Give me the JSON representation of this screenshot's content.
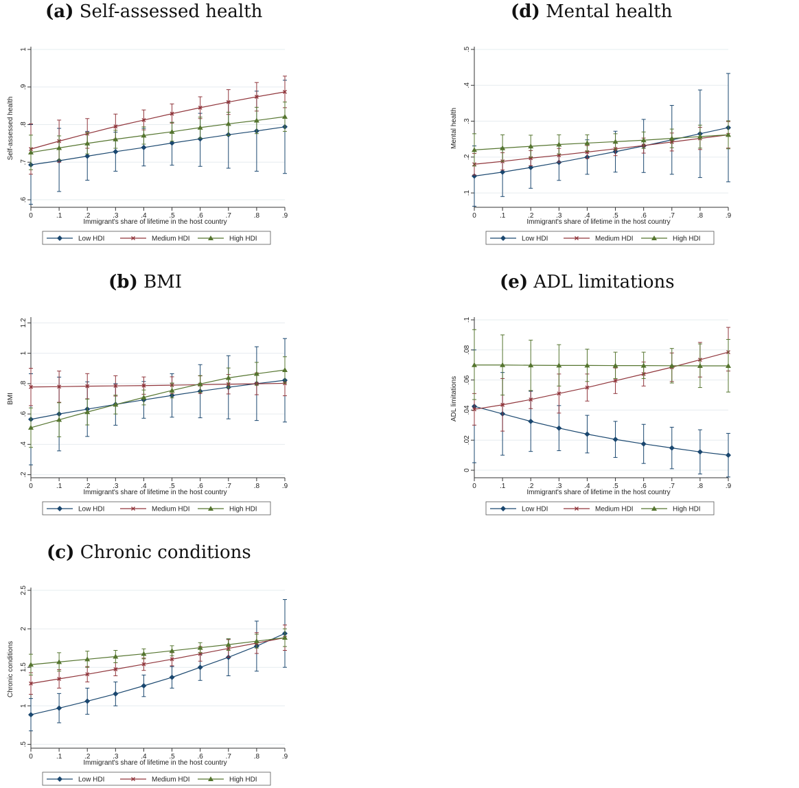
{
  "legend_labels": [
    "Low HDI",
    "Medium HDI",
    "High HDI"
  ],
  "colors": {
    "low": "#1a476f",
    "medium": "#90353b",
    "high": "#55752f",
    "grid": "#e6ecef"
  },
  "chart_data": [
    {
      "id": "a",
      "letter": "(a)",
      "title": "Self-assessed health",
      "type": "line",
      "xlabel": "Immigrant's share of lifetime in the host country",
      "ylabel": "Self-assessed health",
      "x": [
        0,
        0.1,
        0.2,
        0.3,
        0.4,
        0.5,
        0.6,
        0.7,
        0.8,
        0.9
      ],
      "xtick_labels": [
        "0",
        ".1",
        ".2",
        ".3",
        ".4",
        ".5",
        ".6",
        ".7",
        ".8",
        ".9"
      ],
      "ylim": [
        0.58,
        1.0
      ],
      "yticks": [
        0.6,
        0.7,
        0.8,
        0.9,
        1.0
      ],
      "ytick_labels": [
        ".6",
        ".7",
        ".8",
        ".9",
        "1"
      ],
      "series": [
        {
          "name": "Low HDI",
          "values": [
            0.693,
            0.704,
            0.716,
            0.728,
            0.739,
            0.751,
            0.762,
            0.773,
            0.783,
            0.794
          ],
          "lower": [
            0.588,
            0.622,
            0.652,
            0.676,
            0.69,
            0.692,
            0.689,
            0.684,
            0.676,
            0.67
          ],
          "upper": [
            0.8,
            0.79,
            0.782,
            0.78,
            0.79,
            0.806,
            0.83,
            0.86,
            0.889,
            0.918
          ]
        },
        {
          "name": "Medium HDI",
          "values": [
            0.735,
            0.756,
            0.776,
            0.795,
            0.812,
            0.829,
            0.845,
            0.86,
            0.874,
            0.887
          ],
          "lower": [
            0.668,
            0.7,
            0.737,
            0.762,
            0.786,
            0.804,
            0.816,
            0.827,
            0.836,
            0.845
          ],
          "upper": [
            0.802,
            0.812,
            0.816,
            0.828,
            0.839,
            0.855,
            0.874,
            0.893,
            0.912,
            0.929
          ]
        },
        {
          "name": "High HDI",
          "values": [
            0.726,
            0.738,
            0.75,
            0.761,
            0.771,
            0.781,
            0.792,
            0.802,
            0.811,
            0.821
          ],
          "lower": [
            0.68,
            0.706,
            0.722,
            0.737,
            0.748,
            0.756,
            0.764,
            0.771,
            0.776,
            0.782
          ],
          "upper": [
            0.772,
            0.77,
            0.778,
            0.785,
            0.794,
            0.806,
            0.82,
            0.833,
            0.846,
            0.86
          ]
        }
      ]
    },
    {
      "id": "b",
      "letter": "(b)",
      "title": "BMI",
      "type": "line",
      "xlabel": "Immigrant's share of lifetime in the host country",
      "ylabel": "BMI",
      "x": [
        0,
        0.1,
        0.2,
        0.3,
        0.4,
        0.5,
        0.6,
        0.7,
        0.8,
        0.9
      ],
      "xtick_labels": [
        "0",
        ".1",
        ".2",
        ".3",
        ".4",
        ".5",
        ".6",
        ".7",
        ".8",
        ".9"
      ],
      "ylim": [
        0.18,
        1.22
      ],
      "yticks": [
        0.2,
        0.4,
        0.6,
        0.8,
        1.0,
        1.2
      ],
      "ytick_labels": [
        ".2",
        ".4",
        ".6",
        ".8",
        "1",
        "1.2"
      ],
      "series": [
        {
          "name": "Low HDI",
          "values": [
            0.565,
            0.6,
            0.632,
            0.663,
            0.693,
            0.722,
            0.75,
            0.776,
            0.8,
            0.822
          ],
          "lower": [
            0.265,
            0.357,
            0.452,
            0.526,
            0.572,
            0.579,
            0.575,
            0.568,
            0.557,
            0.547
          ],
          "upper": [
            0.865,
            0.843,
            0.812,
            0.8,
            0.814,
            0.865,
            0.925,
            0.984,
            1.043,
            1.097
          ]
        },
        {
          "name": "Medium HDI",
          "values": [
            0.778,
            0.78,
            0.783,
            0.785,
            0.787,
            0.79,
            0.793,
            0.796,
            0.799,
            0.802
          ],
          "lower": [
            0.655,
            0.677,
            0.7,
            0.718,
            0.73,
            0.735,
            0.735,
            0.732,
            0.727,
            0.72
          ],
          "upper": [
            0.901,
            0.883,
            0.866,
            0.852,
            0.844,
            0.845,
            0.851,
            0.86,
            0.871,
            0.884
          ]
        },
        {
          "name": "High HDI",
          "values": [
            0.51,
            0.562,
            0.613,
            0.662,
            0.709,
            0.755,
            0.798,
            0.838,
            0.865,
            0.89
          ],
          "lower": [
            0.38,
            0.45,
            0.528,
            0.6,
            0.66,
            0.706,
            0.743,
            0.773,
            0.79,
            0.803
          ],
          "upper": [
            0.64,
            0.674,
            0.698,
            0.724,
            0.758,
            0.804,
            0.853,
            0.903,
            0.94,
            0.977
          ]
        }
      ]
    },
    {
      "id": "c",
      "letter": "(c)",
      "title": "Chronic conditions",
      "type": "line",
      "xlabel": "Immigrant's share of lifetime in the host country",
      "ylabel": "Chronic conditions",
      "x": [
        0,
        0.1,
        0.2,
        0.3,
        0.4,
        0.5,
        0.6,
        0.7,
        0.8,
        0.9
      ],
      "xtick_labels": [
        "0",
        ".1",
        ".2",
        ".3",
        ".4",
        ".5",
        ".6",
        ".7",
        ".8",
        ".9"
      ],
      "ylim": [
        0.45,
        2.5
      ],
      "yticks": [
        0.5,
        1.0,
        1.5,
        2.0,
        2.5
      ],
      "ytick_labels": [
        ".5",
        "1",
        "1.5",
        "2",
        "2.5"
      ],
      "series": [
        {
          "name": "Low HDI",
          "values": [
            0.885,
            0.97,
            1.06,
            1.155,
            1.26,
            1.37,
            1.5,
            1.63,
            1.775,
            1.94
          ],
          "lower": [
            0.675,
            0.78,
            0.89,
            1.0,
            1.12,
            1.23,
            1.33,
            1.39,
            1.45,
            1.5
          ],
          "upper": [
            1.095,
            1.16,
            1.23,
            1.31,
            1.4,
            1.51,
            1.67,
            1.87,
            2.1,
            2.38
          ]
        },
        {
          "name": "Medium HDI",
          "values": [
            1.29,
            1.35,
            1.41,
            1.475,
            1.54,
            1.605,
            1.675,
            1.745,
            1.815,
            1.885
          ],
          "lower": [
            1.15,
            1.23,
            1.31,
            1.39,
            1.46,
            1.52,
            1.58,
            1.63,
            1.68,
            1.72
          ],
          "upper": [
            1.43,
            1.47,
            1.51,
            1.56,
            1.62,
            1.69,
            1.77,
            1.86,
            1.95,
            2.05
          ]
        },
        {
          "name": "High HDI",
          "values": [
            1.535,
            1.57,
            1.605,
            1.64,
            1.675,
            1.715,
            1.755,
            1.795,
            1.84,
            1.885
          ],
          "lower": [
            1.4,
            1.45,
            1.5,
            1.56,
            1.61,
            1.65,
            1.69,
            1.72,
            1.75,
            1.77
          ],
          "upper": [
            1.67,
            1.69,
            1.71,
            1.72,
            1.74,
            1.78,
            1.82,
            1.87,
            1.93,
            2.0
          ]
        }
      ]
    },
    {
      "id": "d",
      "letter": "(d)",
      "title": "Mental health",
      "type": "line",
      "xlabel": "Immigrant's share of lifetime in the host country",
      "ylabel": "Mental health",
      "x": [
        0,
        0.1,
        0.2,
        0.3,
        0.4,
        0.5,
        0.6,
        0.7,
        0.8,
        0.9
      ],
      "xtick_labels": [
        "0",
        ".1",
        ".2",
        ".3",
        ".4",
        ".5",
        ".6",
        ".7",
        ".8",
        ".9"
      ],
      "ylim": [
        0.06,
        0.5
      ],
      "yticks": [
        0.1,
        0.2,
        0.3,
        0.4,
        0.5
      ],
      "ytick_labels": [
        ".1",
        ".2",
        ".3",
        ".4",
        ".5"
      ],
      "series": [
        {
          "name": "Low HDI",
          "values": [
            0.147,
            0.158,
            0.171,
            0.185,
            0.2,
            0.215,
            0.231,
            0.248,
            0.265,
            0.282
          ],
          "lower": [
            0.063,
            0.09,
            0.113,
            0.135,
            0.152,
            0.158,
            0.157,
            0.152,
            0.143,
            0.131
          ],
          "upper": [
            0.231,
            0.226,
            0.229,
            0.235,
            0.248,
            0.272,
            0.305,
            0.344,
            0.387,
            0.433
          ]
        },
        {
          "name": "Medium HDI",
          "values": [
            0.18,
            0.188,
            0.197,
            0.205,
            0.214,
            0.223,
            0.232,
            0.242,
            0.252,
            0.262
          ],
          "lower": [
            0.15,
            0.164,
            0.176,
            0.186,
            0.196,
            0.204,
            0.211,
            0.217,
            0.221,
            0.225
          ],
          "upper": [
            0.21,
            0.212,
            0.218,
            0.224,
            0.232,
            0.242,
            0.253,
            0.267,
            0.283,
            0.299
          ]
        },
        {
          "name": "High HDI",
          "values": [
            0.22,
            0.225,
            0.23,
            0.235,
            0.239,
            0.243,
            0.247,
            0.252,
            0.257,
            0.262
          ],
          "lower": [
            0.175,
            0.188,
            0.199,
            0.208,
            0.216,
            0.221,
            0.224,
            0.226,
            0.225,
            0.223
          ],
          "upper": [
            0.265,
            0.262,
            0.261,
            0.262,
            0.262,
            0.265,
            0.27,
            0.278,
            0.289,
            0.301
          ]
        }
      ]
    },
    {
      "id": "e",
      "letter": "(e)",
      "title": "ADL limitations",
      "type": "line",
      "xlabel": "Immigrant's share of lifetime in the host country",
      "ylabel": "ADL limitations",
      "x": [
        0,
        0.1,
        0.2,
        0.3,
        0.4,
        0.5,
        0.6,
        0.7,
        0.8,
        0.9
      ],
      "xtick_labels": [
        "0",
        ".1",
        ".2",
        ".3",
        ".4",
        ".5",
        ".6",
        ".7",
        ".8",
        ".9"
      ],
      "ylim": [
        -0.005,
        0.1
      ],
      "yticks": [
        0,
        0.02,
        0.04,
        0.06,
        0.08,
        0.1
      ],
      "ytick_labels": [
        "0",
        ".02",
        ".04",
        ".06",
        ".08",
        ".1"
      ],
      "series": [
        {
          "name": "Low HDI",
          "values": [
            0.0425,
            0.0375,
            0.0325,
            0.028,
            0.024,
            0.0205,
            0.0175,
            0.0148,
            0.0122,
            0.01
          ],
          "lower": [
            0.005,
            0.01,
            0.0125,
            0.013,
            0.0115,
            0.0085,
            0.0045,
            0.001,
            -0.0025,
            -0.0045
          ],
          "upper": [
            0.08,
            0.065,
            0.0525,
            0.043,
            0.0365,
            0.0325,
            0.0305,
            0.0286,
            0.0269,
            0.0245
          ]
        },
        {
          "name": "Medium HDI",
          "values": [
            0.0405,
            0.0435,
            0.047,
            0.051,
            0.055,
            0.0595,
            0.064,
            0.0685,
            0.0735,
            0.0785
          ],
          "lower": [
            0.03,
            0.026,
            0.041,
            0.038,
            0.046,
            0.051,
            0.056,
            0.059,
            0.062,
            0.066
          ],
          "upper": [
            0.051,
            0.061,
            0.053,
            0.064,
            0.064,
            0.068,
            0.072,
            0.078,
            0.085,
            0.095
          ]
        },
        {
          "name": "High HDI",
          "values": [
            0.07,
            0.07,
            0.0698,
            0.0697,
            0.0697,
            0.0696,
            0.0696,
            0.0695,
            0.0694,
            0.0694
          ],
          "lower": [
            0.047,
            0.05,
            0.053,
            0.056,
            0.059,
            0.061,
            0.061,
            0.058,
            0.055,
            0.052
          ],
          "upper": [
            0.0935,
            0.09,
            0.0865,
            0.0835,
            0.0805,
            0.0785,
            0.0785,
            0.081,
            0.084,
            0.087
          ]
        }
      ]
    }
  ]
}
